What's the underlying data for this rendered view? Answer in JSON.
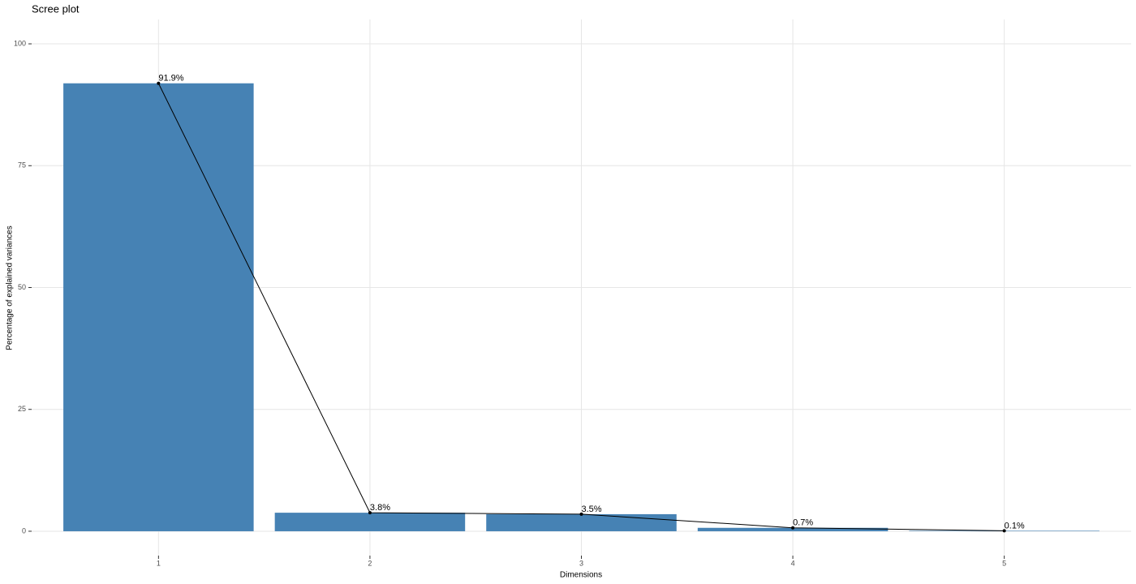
{
  "chart_data": {
    "type": "bar",
    "title": "Scree plot",
    "x_label": "Dimensions",
    "y_label": "Percentage of explained variances",
    "categories": [
      "1",
      "2",
      "3",
      "4",
      "5"
    ],
    "values": [
      91.9,
      3.8,
      3.5,
      0.7,
      0.1
    ],
    "value_labels": [
      "91.9%",
      "3.8%",
      "3.5%",
      "0.7%",
      "0.1%"
    ],
    "color": "#4682b4",
    "line_color": "#000000",
    "ylim": [
      -5,
      105
    ],
    "yticks": [
      0,
      25,
      50,
      75,
      100
    ],
    "grid": true
  }
}
